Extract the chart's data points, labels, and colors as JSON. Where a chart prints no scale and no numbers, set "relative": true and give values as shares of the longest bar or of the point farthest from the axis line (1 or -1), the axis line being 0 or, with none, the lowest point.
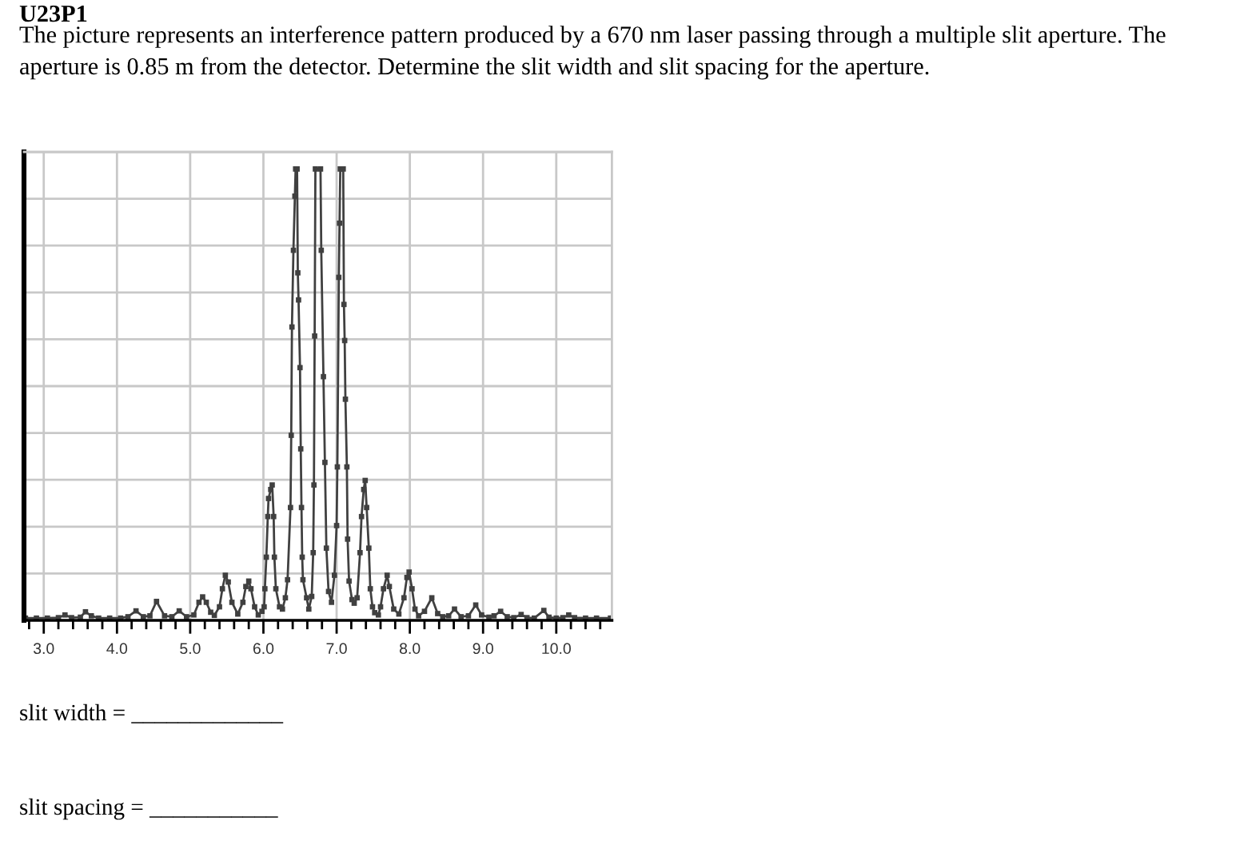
{
  "chart_data": {
    "type": "line",
    "title": "U23P1",
    "subtitle": "The picture represents an interference pattern produced by a 670 nm laser passing through a multiple slit aperture. The aperture is 0.85 m from the detector. Determine the slit width and slit spacing for the aperture.",
    "annotations": [
      "slit width = _____________",
      "slit spacing = ___________"
    ],
    "x": [
      2.75,
      2.9,
      3.05,
      3.2,
      3.29,
      3.38,
      3.5,
      3.57,
      3.65,
      3.75,
      3.9,
      4.05,
      4.15,
      4.26,
      4.36,
      4.45,
      4.54,
      4.65,
      4.75,
      4.85,
      4.95,
      5.05,
      5.12,
      5.17,
      5.22,
      5.28,
      5.33,
      5.4,
      5.44,
      5.48,
      5.52,
      5.57,
      5.65,
      5.72,
      5.76,
      5.8,
      5.83,
      5.88,
      5.93,
      5.98,
      6.01,
      6.02,
      6.04,
      6.06,
      6.07,
      6.1,
      6.12,
      6.14,
      6.15,
      6.17,
      6.22,
      6.26,
      6.3,
      6.33,
      6.37,
      6.38,
      6.39,
      6.41,
      6.43,
      6.44,
      6.46,
      6.47,
      6.48,
      6.5,
      6.51,
      6.52,
      6.53,
      6.54,
      6.59,
      6.62,
      6.66,
      6.68,
      6.69,
      6.7,
      6.71,
      6.78,
      6.79,
      6.82,
      6.84,
      6.86,
      6.89,
      6.93,
      6.97,
      7.0,
      7.01,
      7.03,
      7.04,
      7.05,
      7.09,
      7.1,
      7.11,
      7.12,
      7.14,
      7.15,
      7.17,
      7.21,
      7.24,
      7.28,
      7.32,
      7.34,
      7.37,
      7.39,
      7.41,
      7.44,
      7.46,
      7.49,
      7.52,
      7.57,
      7.6,
      7.64,
      7.69,
      7.72,
      7.78,
      7.85,
      7.92,
      7.96,
      7.99,
      8.03,
      8.07,
      8.12,
      8.2,
      8.3,
      8.38,
      8.45,
      8.53,
      8.61,
      8.7,
      8.8,
      8.9,
      8.98,
      9.08,
      9.15,
      9.24,
      9.33,
      9.42,
      9.52,
      9.6,
      9.7,
      9.83,
      9.9,
      10.0,
      10.09,
      10.17,
      10.25,
      10.4,
      10.55,
      10.74
    ],
    "series": [
      {
        "color": "#404040",
        "values": [
          0.005,
          0.005,
          0.005,
          0.006,
          0.012,
          0.006,
          0.007,
          0.019,
          0.01,
          0.005,
          0.005,
          0.005,
          0.008,
          0.021,
          0.008,
          0.01,
          0.042,
          0.01,
          0.008,
          0.021,
          0.008,
          0.012,
          0.04,
          0.052,
          0.04,
          0.018,
          0.011,
          0.03,
          0.07,
          0.1,
          0.085,
          0.04,
          0.014,
          0.04,
          0.075,
          0.087,
          0.07,
          0.03,
          0.012,
          0.02,
          0.03,
          0.07,
          0.14,
          0.23,
          0.27,
          0.29,
          0.3,
          0.23,
          0.14,
          0.07,
          0.03,
          0.025,
          0.05,
          0.09,
          0.25,
          0.41,
          0.65,
          0.82,
          0.94,
          1,
          1,
          0.77,
          0.71,
          0.56,
          0.38,
          0.25,
          0.14,
          0.09,
          0.05,
          0.025,
          0.053,
          0.15,
          0.3,
          0.63,
          1,
          1,
          0.82,
          0.54,
          0.35,
          0.16,
          0.064,
          0.04,
          0.1,
          0.21,
          0.34,
          0.76,
          0.88,
          1,
          1,
          0.7,
          0.62,
          0.49,
          0.34,
          0.18,
          0.087,
          0.046,
          0.038,
          0.05,
          0.15,
          0.23,
          0.29,
          0.31,
          0.25,
          0.16,
          0.07,
          0.03,
          0.017,
          0.012,
          0.03,
          0.07,
          0.1,
          0.075,
          0.025,
          0.014,
          0.05,
          0.095,
          0.107,
          0.07,
          0.025,
          0.01,
          0.02,
          0.05,
          0.015,
          0.008,
          0.01,
          0.025,
          0.008,
          0.01,
          0.034,
          0.012,
          0.007,
          0.01,
          0.02,
          0.008,
          0.006,
          0.013,
          0.006,
          0.005,
          0.022,
          0.007,
          0.005,
          0.006,
          0.012,
          0.006,
          0.005,
          0.005,
          0.005
        ]
      }
    ],
    "relative": true,
    "xlim": [
      2.73,
      10.76
    ],
    "xticks": [
      {
        "value": 3,
        "label": "3.0"
      },
      {
        "value": 4,
        "label": "4.0"
      },
      {
        "value": 5,
        "label": "5.0"
      },
      {
        "value": 6,
        "label": "6.0"
      },
      {
        "value": 7,
        "label": "7.0"
      },
      {
        "value": 8,
        "label": "8.0"
      },
      {
        "value": 9,
        "label": "9.0"
      },
      {
        "value": 10,
        "label": "10.0"
      }
    ],
    "grid": true,
    "marker": "square",
    "line_style": "solid"
  }
}
